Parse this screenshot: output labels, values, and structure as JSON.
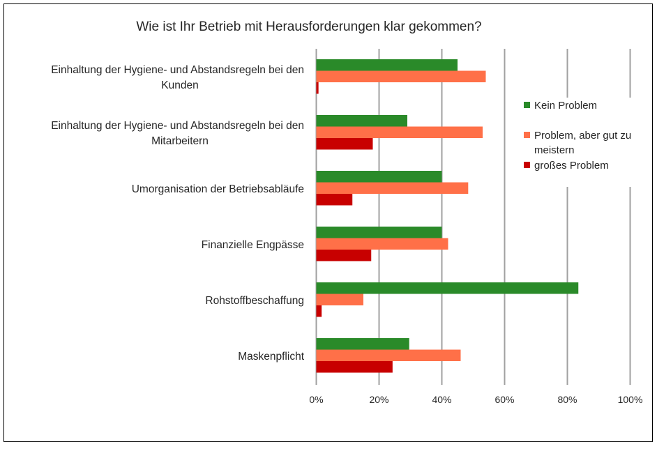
{
  "chart_data": {
    "type": "bar",
    "orientation": "horizontal",
    "title": "Wie ist Ihr Betrieb mit Herausforderungen klar gekommen?",
    "categories": [
      [
        "Einhaltung der Hygiene- und Abstandsregeln bei den",
        "Kunden"
      ],
      [
        "Einhaltung der Hygiene- und Abstandsregeln bei den",
        "Mitarbeitern"
      ],
      [
        "Umorganisation der Betriebsabläufe"
      ],
      [
        "Finanzielle Engpässe"
      ],
      [
        "Rohstoffbeschaffung"
      ],
      [
        "Maskenpflicht"
      ]
    ],
    "series": [
      {
        "name": "Kein Problem",
        "color": "#2a8a29",
        "values": [
          45,
          29,
          40,
          40,
          83.5,
          29.6
        ]
      },
      {
        "name": "Problem, aber gut zu meistern",
        "legend_lines": [
          "Problem, aber gut zu",
          "meistern"
        ],
        "color": "#ff7048",
        "values": [
          54,
          53,
          48.4,
          42,
          15,
          46
        ]
      },
      {
        "name": "großes Problem",
        "color": "#c80000",
        "values": [
          0.7,
          18,
          11.5,
          17.5,
          1.7,
          24.3
        ]
      }
    ],
    "xlim": [
      0,
      100
    ],
    "xticks": [
      "0%",
      "20%",
      "40%",
      "60%",
      "80%",
      "100%"
    ],
    "xtick_values": [
      0,
      20,
      40,
      60,
      80,
      100
    ],
    "grid": true,
    "legend_position": "right",
    "grid_color": "#a0a0a0"
  }
}
